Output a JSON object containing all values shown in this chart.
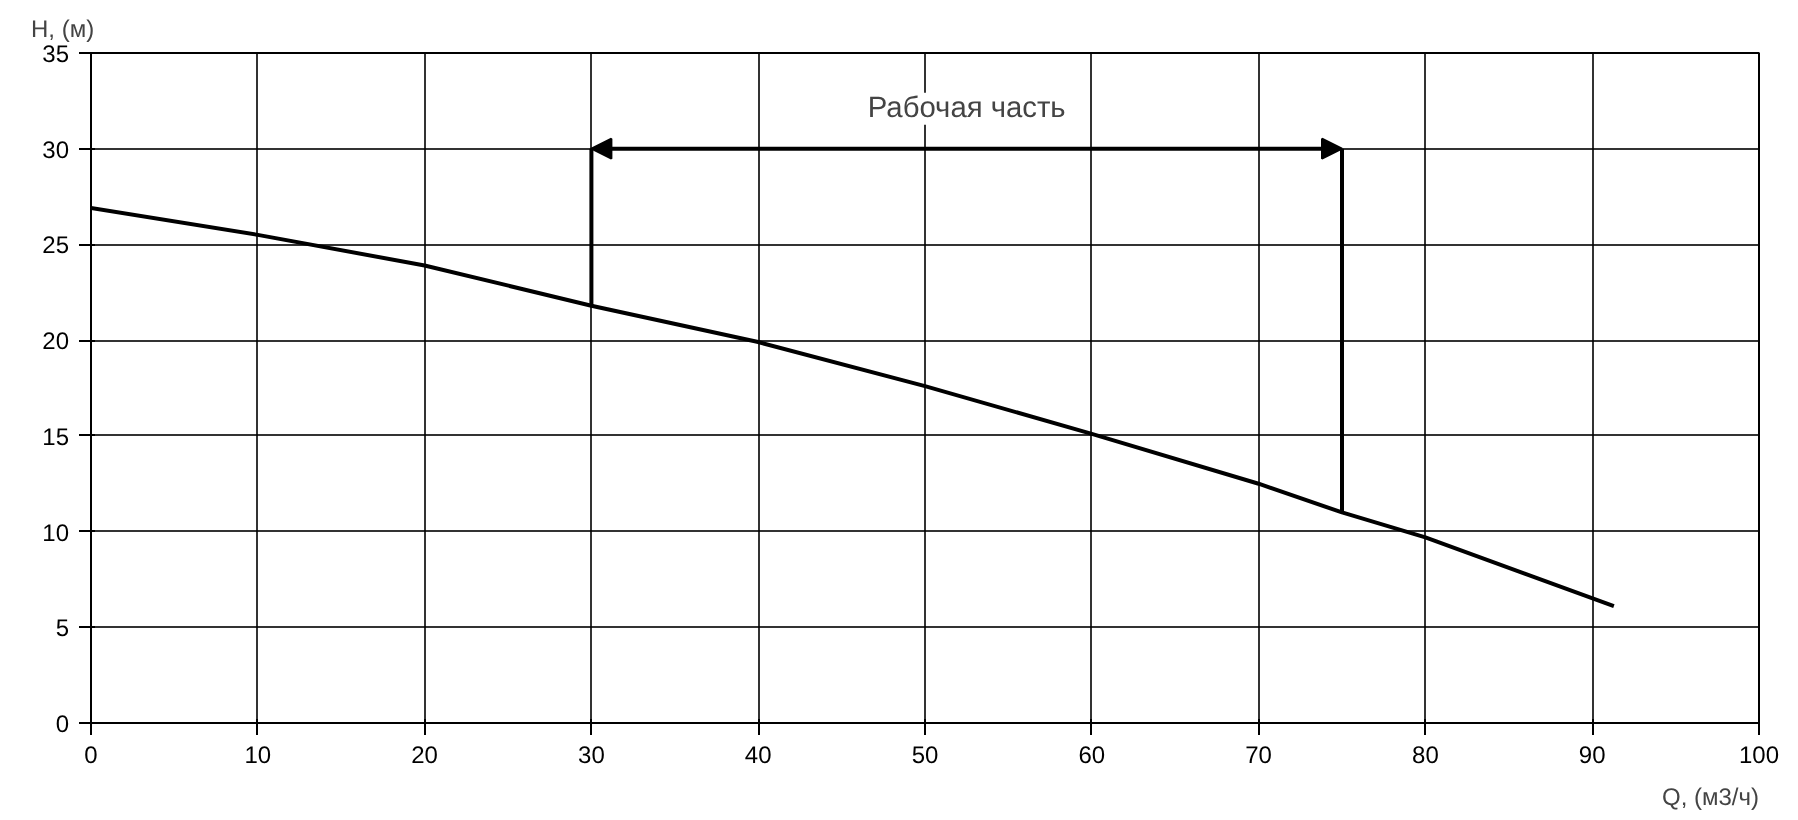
{
  "chart_data": {
    "type": "line",
    "xlabel": "Q, (м3/ч)",
    "ylabel": "H, (м)",
    "xlim": [
      0,
      100
    ],
    "ylim": [
      0,
      35
    ],
    "xticks": [
      0,
      10,
      20,
      30,
      40,
      50,
      60,
      70,
      80,
      90,
      100
    ],
    "yticks": [
      0,
      5,
      10,
      15,
      20,
      25,
      30,
      35
    ],
    "grid": true,
    "marker": "none",
    "line_style": "solid",
    "series": [
      {
        "color": "#000000",
        "x": [
          0,
          10,
          20,
          30,
          40,
          50,
          60,
          70,
          75,
          80,
          91.3
        ],
        "values": [
          26.9,
          25.5,
          23.9,
          21.8,
          19.9,
          17.6,
          15.1,
          12.5,
          11.0,
          9.7,
          6.1
        ]
      },
      {
        "color": "#000000",
        "x": [
          30,
          30
        ],
        "values": [
          21.8,
          30
        ]
      },
      {
        "color": "#000000",
        "x": [
          75,
          75
        ],
        "values": [
          11.0,
          30
        ]
      }
    ],
    "annotations": [
      "Рабочая часть"
    ]
  }
}
